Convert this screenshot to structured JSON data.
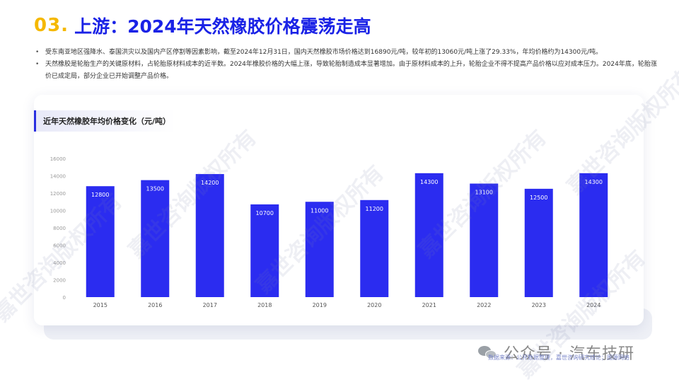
{
  "header": {
    "section_number": "03.",
    "title": "上游：2024年天然橡胶价格震荡走高"
  },
  "bullets": [
    "受东南亚地区强降水、泰国洪灾以及国内产区停割等因素影响，截至2024年12月31日，国内天然橡胶市场价格达到16890元/吨，较年初的13060元/吨上涨了29.33%，年均价格约为14300元/吨。",
    "天然橡胶是轮胎生产的关键原材料，占轮胎原材料成本的近半数。2024年橡胶价格的大幅上涨，导致轮胎制造成本显著增加。由于原材料成本的上升，轮胎企业不得不提高产品价格以应对成本压力。2024年底，轮胎涨价已成定局，部分企业已开始调整产品价格。"
  ],
  "chart_card": {
    "title": "近年天然橡胶年均价格变化（元/吨）"
  },
  "chart_data": {
    "type": "bar",
    "title": "近年天然橡胶年均价格变化（元/吨）",
    "categories": [
      "2015",
      "2016",
      "2017",
      "2018",
      "2019",
      "2020",
      "2021",
      "2022",
      "2023",
      "2024"
    ],
    "values": [
      12800,
      13500,
      14200,
      10700,
      11000,
      11200,
      14300,
      13100,
      12500,
      14300
    ],
    "y_ticks": [
      "0",
      "2000",
      "4000",
      "6000",
      "8000",
      "10000",
      "12000",
      "14000",
      "16000"
    ],
    "ylim": [
      0,
      16000
    ],
    "bar_color": "#2b2cf0",
    "data_labels": true,
    "grid": false,
    "legend": "none"
  },
  "footer": {
    "source": "数据来源：公开数据整理，嘉世咨询研究结论；图源网络",
    "wechat_label": "公众号 · 汽车技研"
  },
  "watermark_text": "嘉世咨询版权所有",
  "colors": {
    "accent_yellow": "#f5b800",
    "title_blue": "#1a22e6",
    "bar_blue": "#2b2cf0"
  }
}
